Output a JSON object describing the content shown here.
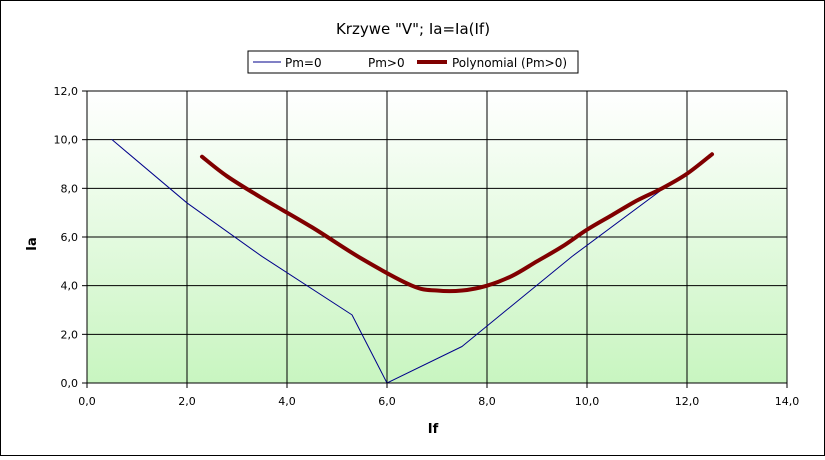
{
  "chart_data": {
    "type": "line",
    "title": "Krzywe \"V\"; Ia=Ia(If)",
    "xlabel": "If",
    "ylabel": "Ia",
    "xlim": [
      0,
      14
    ],
    "ylim": [
      0,
      12
    ],
    "xticks": [
      0,
      2,
      4,
      6,
      8,
      10,
      12,
      14
    ],
    "yticks": [
      0,
      2,
      4,
      6,
      8,
      10,
      12
    ],
    "x_tick_labels": [
      "0,0",
      "2,0",
      "4,0",
      "6,0",
      "8,0",
      "10,0",
      "12,0",
      "14,0"
    ],
    "y_tick_labels": [
      "0,0",
      "2,0",
      "4,0",
      "6,0",
      "8,0",
      "10,0",
      "12,0"
    ],
    "grid": true,
    "legend_position": "top-center",
    "series": [
      {
        "name": "Pm=0",
        "color": "#00008b",
        "line": "thin",
        "x": [
          0.5,
          2.0,
          3.5,
          5.3,
          6.0,
          7.5,
          9.7,
          11.6
        ],
        "y": [
          10.0,
          7.4,
          5.2,
          2.8,
          0.0,
          1.5,
          5.2,
          8.1
        ]
      },
      {
        "name": "Pm>0",
        "color": "#ffffff",
        "line": "none",
        "x": [],
        "y": []
      },
      {
        "name": "Polynomial (Pm>0)",
        "color": "#800000",
        "line": "thick",
        "x": [
          2.3,
          2.8,
          3.5,
          4.5,
          5.5,
          6.5,
          7.0,
          7.5,
          8.0,
          8.5,
          9.0,
          9.5,
          10.0,
          10.5,
          11.0,
          11.5,
          12.0,
          12.5
        ],
        "y": [
          9.3,
          8.5,
          7.6,
          6.4,
          5.1,
          4.0,
          3.8,
          3.8,
          4.0,
          4.4,
          5.0,
          5.6,
          6.3,
          6.9,
          7.5,
          8.0,
          8.6,
          9.4
        ]
      }
    ]
  }
}
